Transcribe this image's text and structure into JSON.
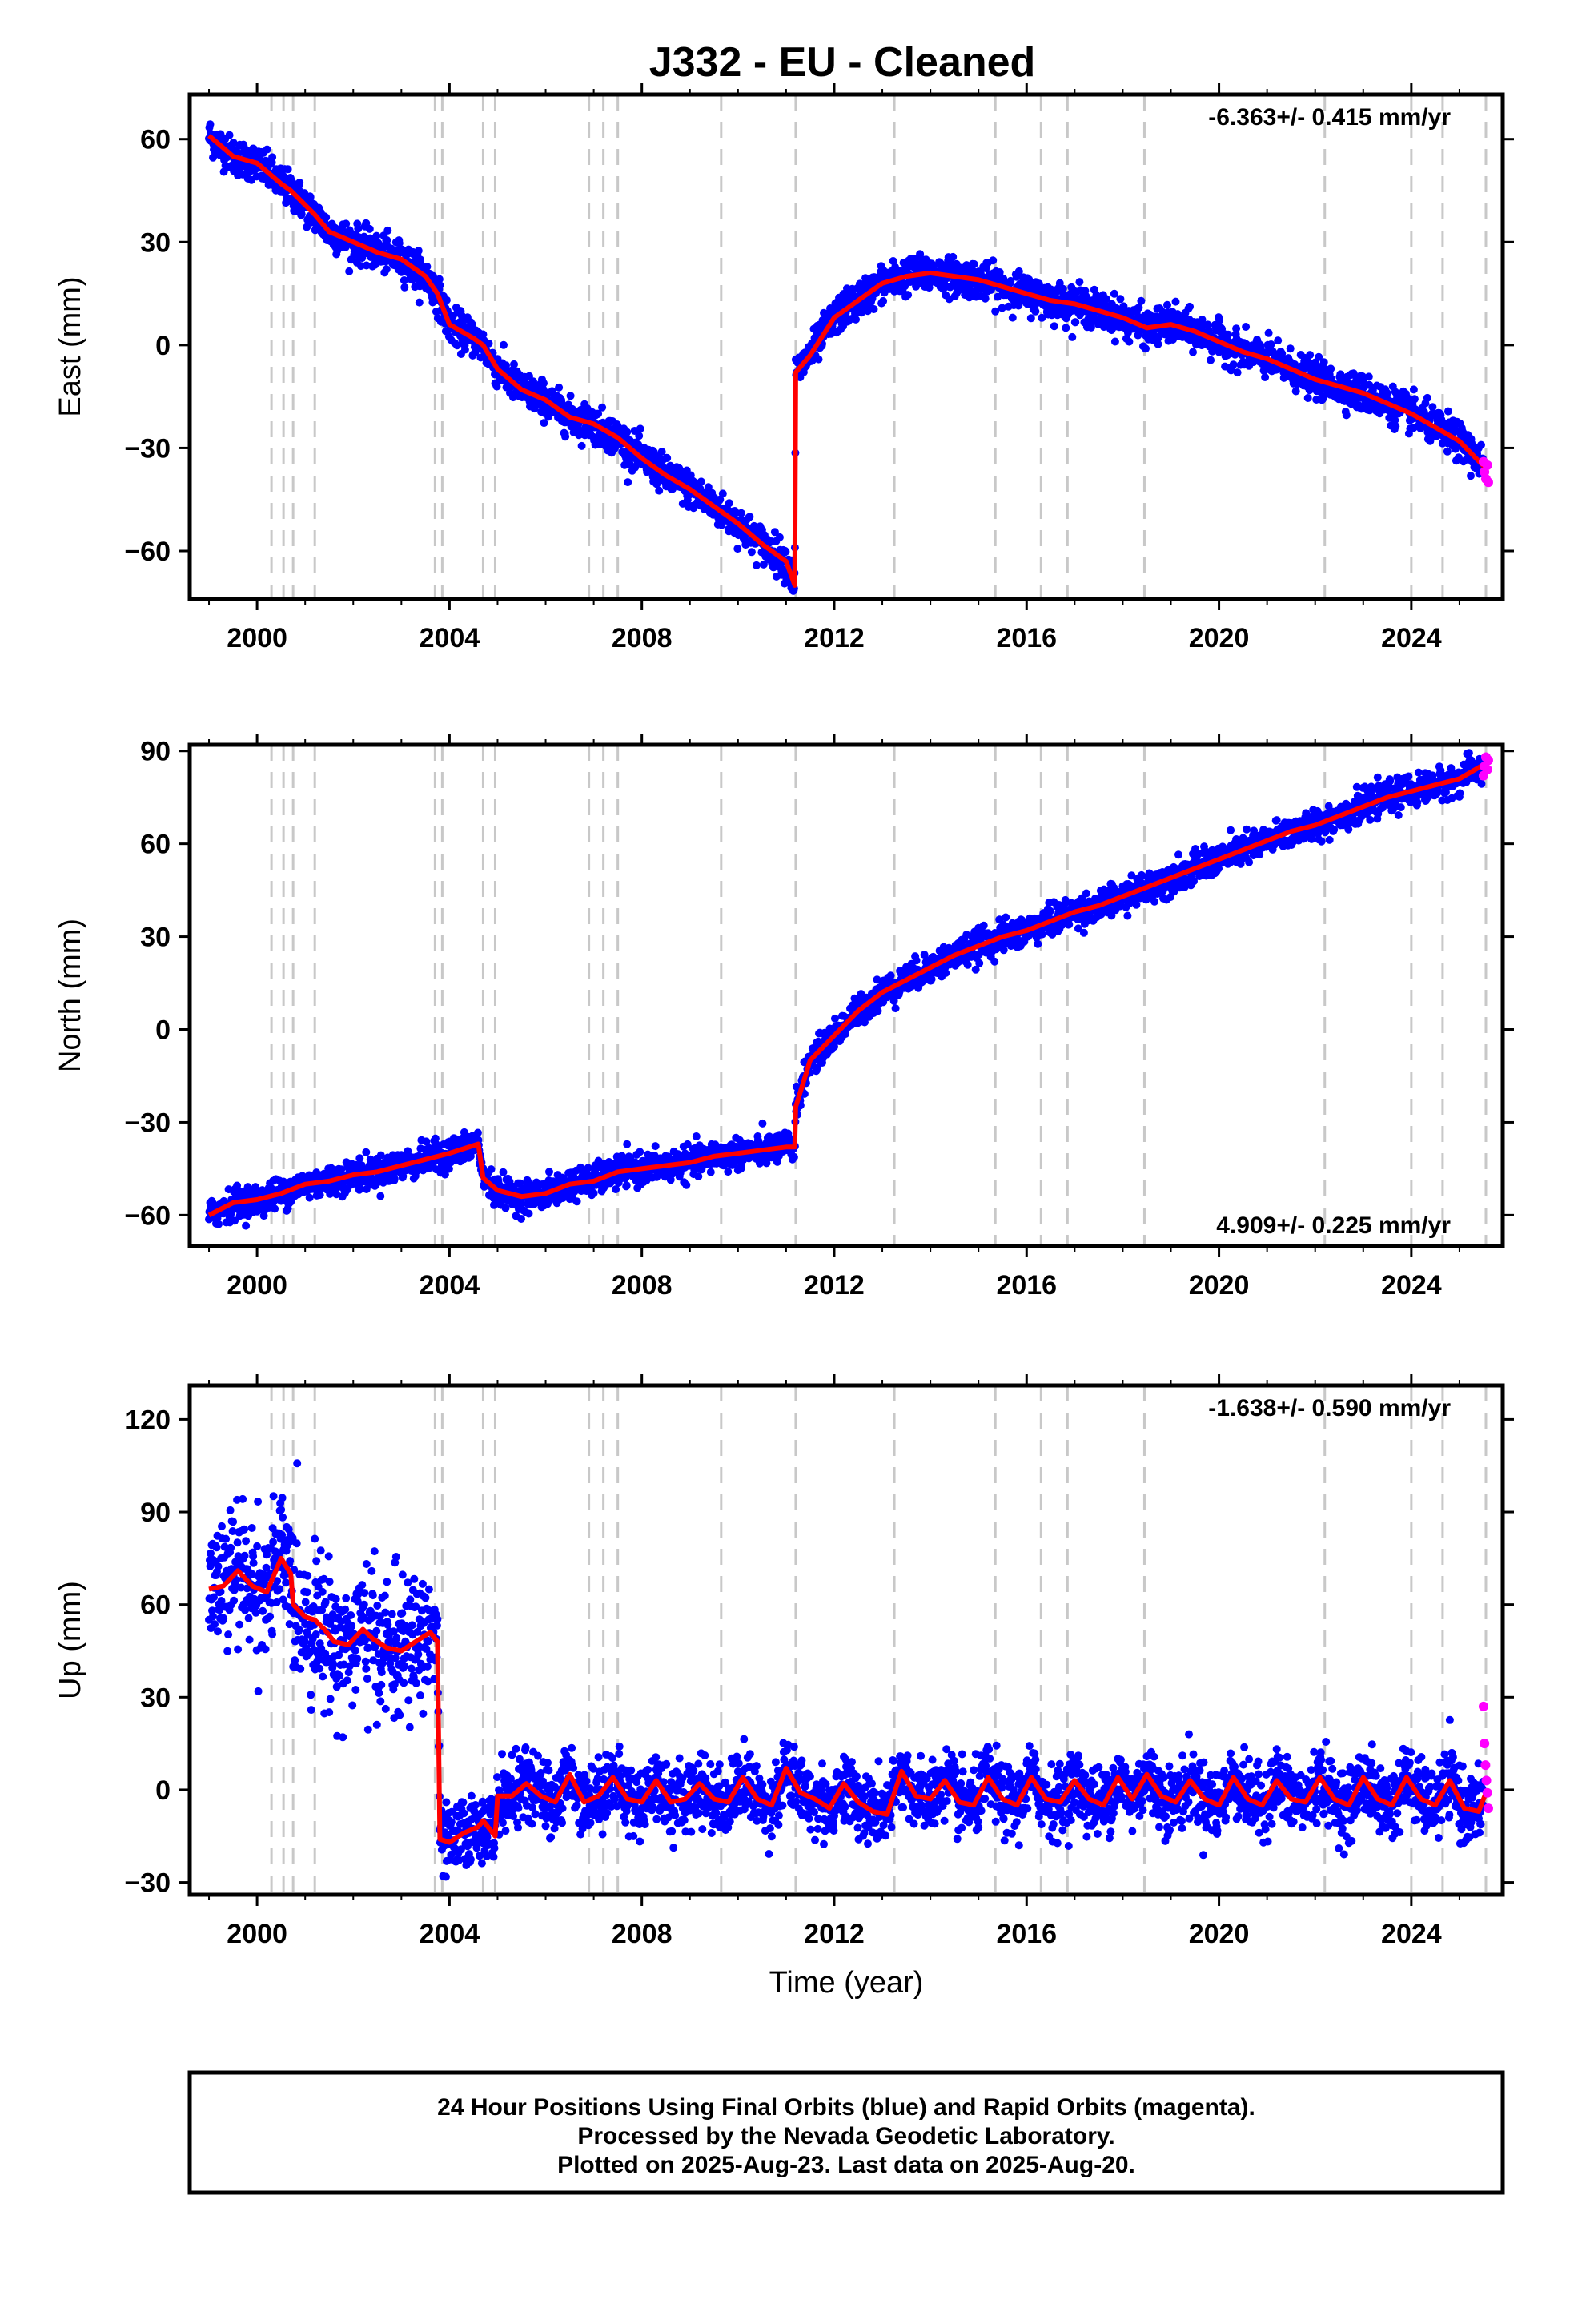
{
  "title": "J332  - EU - Cleaned",
  "xlabel": "Time (year)",
  "colors": {
    "final": "#0000ff",
    "rapid": "#ff00ff",
    "model": "#ff0000",
    "breaks": "#c8c8c8"
  },
  "footer": [
    "24 Hour Positions Using Final Orbits (blue) and Rapid Orbits (magenta).",
    "Processed by the Nevada Geodetic Laboratory.",
    "Plotted on 2025-Aug-23. Last data on 2025-Aug-20."
  ],
  "chart_data": [
    {
      "type": "scatter",
      "ylabel": "East (mm)",
      "rate": "-6.363+/- 0.415 mm/yr",
      "xlim": [
        1998.6,
        2025.9
      ],
      "ylim": [
        -74,
        73
      ],
      "xticks": [
        2000,
        2004,
        2008,
        2012,
        2016,
        2020,
        2024
      ],
      "yticks": [
        -60,
        -30,
        0,
        30,
        60
      ],
      "breaks": [
        2000.3,
        2000.55,
        2000.75,
        2001.2,
        2003.7,
        2003.85,
        2004.7,
        2004.95,
        2006.9,
        2007.2,
        2007.5,
        2009.65,
        2011.2,
        2013.25,
        2015.35,
        2016.3,
        2016.85,
        2018.45,
        2022.2,
        2024.0,
        2024.65,
        2025.55
      ],
      "series": [
        {
          "role": "model",
          "x": [
            1999.0,
            1999.5,
            2000.0,
            2000.5,
            2000.7,
            2001.2,
            2001.5,
            2002.0,
            2002.5,
            2003.0,
            2003.5,
            2003.75,
            2004.0,
            2004.5,
            2004.7,
            2005.0,
            2005.5,
            2006.0,
            2006.5,
            2007.0,
            2007.5,
            2008.0,
            2008.5,
            2009.0,
            2009.5,
            2010.0,
            2010.5,
            2011.0,
            2011.18,
            2011.2,
            2011.5,
            2012.0,
            2012.5,
            2013.0,
            2013.5,
            2014.0,
            2014.5,
            2015.0,
            2015.5,
            2016.0,
            2016.5,
            2017.0,
            2017.5,
            2018.0,
            2018.5,
            2019.0,
            2019.5,
            2020.0,
            2020.5,
            2021.0,
            2021.5,
            2022.0,
            2022.5,
            2023.0,
            2023.5,
            2024.0,
            2024.5,
            2025.0,
            2025.55
          ],
          "y": [
            61,
            55,
            53,
            47,
            45,
            38,
            33,
            30,
            27,
            25,
            20,
            15,
            6,
            2,
            0,
            -7,
            -13,
            -16,
            -21,
            -23,
            -27,
            -33,
            -38,
            -42,
            -47,
            -52,
            -58,
            -63,
            -70,
            -8,
            -3,
            8,
            13,
            18,
            20,
            21,
            20,
            19,
            17,
            15,
            13,
            12,
            10,
            8,
            5,
            6,
            4,
            1,
            -2,
            -4,
            -7,
            -10,
            -12,
            -14,
            -17,
            -20,
            -24,
            -28,
            -36
          ]
        },
        {
          "role": "final",
          "note": "daily positions scatter around model",
          "noise_mm": 2.6,
          "x_range": [
            1999.0,
            2025.5
          ]
        },
        {
          "role": "rapid",
          "x": [
            2025.5,
            2025.52,
            2025.55,
            2025.58,
            2025.6
          ],
          "y": [
            -34,
            -37,
            -39,
            -35,
            -40
          ]
        }
      ]
    },
    {
      "type": "scatter",
      "ylabel": "North (mm)",
      "rate": "4.909+/- 0.225 mm/yr",
      "xlim": [
        1998.6,
        2025.9
      ],
      "ylim": [
        -70,
        92
      ],
      "xticks": [
        2000,
        2004,
        2008,
        2012,
        2016,
        2020,
        2024
      ],
      "yticks": [
        -60,
        -30,
        0,
        30,
        60,
        90
      ],
      "breaks": [
        2000.3,
        2000.55,
        2000.75,
        2001.2,
        2003.7,
        2003.85,
        2004.7,
        2004.95,
        2006.9,
        2007.2,
        2007.5,
        2009.65,
        2011.2,
        2013.25,
        2015.35,
        2016.3,
        2016.85,
        2018.45,
        2022.2,
        2024.0,
        2024.65,
        2025.55
      ],
      "series": [
        {
          "role": "model",
          "x": [
            1999.0,
            1999.5,
            2000.0,
            2000.5,
            2001.0,
            2001.5,
            2002.0,
            2002.5,
            2003.0,
            2003.5,
            2004.0,
            2004.6,
            2004.7,
            2005.0,
            2005.5,
            2006.0,
            2006.5,
            2007.0,
            2007.5,
            2008.0,
            2008.5,
            2009.0,
            2009.5,
            2010.0,
            2010.5,
            2011.0,
            2011.18,
            2011.2,
            2011.5,
            2012.0,
            2012.5,
            2013.0,
            2013.5,
            2014.0,
            2014.5,
            2015.0,
            2015.5,
            2016.0,
            2016.5,
            2017.0,
            2017.5,
            2018.0,
            2018.5,
            2019.0,
            2019.5,
            2020.0,
            2020.5,
            2021.0,
            2021.5,
            2022.0,
            2022.5,
            2023.0,
            2023.5,
            2024.0,
            2024.5,
            2025.0,
            2025.55
          ],
          "y": [
            -60,
            -56,
            -55,
            -53,
            -50,
            -49,
            -47,
            -46,
            -44,
            -42,
            -40,
            -37,
            -48,
            -52,
            -54,
            -53,
            -50,
            -49,
            -46,
            -45,
            -44,
            -43,
            -41,
            -40,
            -39,
            -38,
            -38,
            -25,
            -10,
            -2,
            6,
            12,
            16,
            20,
            24,
            27,
            30,
            32,
            35,
            38,
            40,
            43,
            46,
            49,
            52,
            55,
            58,
            61,
            64,
            66,
            69,
            72,
            75,
            77,
            79,
            81,
            86
          ]
        },
        {
          "role": "final",
          "note": "daily positions scatter around model",
          "noise_mm": 2.4,
          "x_range": [
            1999.0,
            2025.5
          ]
        },
        {
          "role": "rapid",
          "x": [
            2025.5,
            2025.52,
            2025.55,
            2025.58,
            2025.6
          ],
          "y": [
            82,
            85,
            88,
            84,
            87
          ]
        }
      ]
    },
    {
      "type": "scatter",
      "ylabel": "Up (mm)",
      "rate": "-1.638+/- 0.590 mm/yr",
      "xlim": [
        1998.6,
        2025.9
      ],
      "ylim": [
        -34,
        131
      ],
      "xticks": [
        2000,
        2004,
        2008,
        2012,
        2016,
        2020,
        2024
      ],
      "yticks": [
        -30,
        0,
        30,
        60,
        90,
        120
      ],
      "breaks": [
        2000.3,
        2000.55,
        2000.75,
        2001.2,
        2003.7,
        2003.85,
        2004.7,
        2004.95,
        2006.9,
        2007.2,
        2007.5,
        2009.65,
        2011.2,
        2013.25,
        2015.35,
        2016.3,
        2016.85,
        2018.45,
        2022.2,
        2024.0,
        2024.65,
        2025.55
      ],
      "series": [
        {
          "role": "model",
          "x": [
            1999.0,
            1999.3,
            1999.6,
            1999.9,
            2000.2,
            2000.5,
            2000.7,
            2000.75,
            2001.0,
            2001.2,
            2001.4,
            2001.6,
            2001.9,
            2002.2,
            2002.4,
            2002.7,
            2003.0,
            2003.3,
            2003.6,
            2003.75,
            2003.8,
            2004.0,
            2004.3,
            2004.6,
            2004.7,
            2004.95,
            2005.0,
            2005.3,
            2005.6,
            2005.9,
            2006.2,
            2006.5,
            2006.8,
            2007.1,
            2007.4,
            2007.7,
            2008.0,
            2008.3,
            2008.6,
            2008.9,
            2009.2,
            2009.5,
            2009.8,
            2010.1,
            2010.4,
            2010.7,
            2011.0,
            2011.3,
            2011.6,
            2011.9,
            2012.2,
            2012.5,
            2012.8,
            2013.1,
            2013.4,
            2013.7,
            2014.0,
            2014.3,
            2014.6,
            2014.9,
            2015.2,
            2015.5,
            2015.8,
            2016.1,
            2016.4,
            2016.7,
            2017.0,
            2017.3,
            2017.6,
            2017.9,
            2018.2,
            2018.5,
            2018.8,
            2019.1,
            2019.4,
            2019.7,
            2020.0,
            2020.3,
            2020.6,
            2020.9,
            2021.2,
            2021.5,
            2021.8,
            2022.1,
            2022.4,
            2022.7,
            2023.0,
            2023.3,
            2023.6,
            2023.9,
            2024.2,
            2024.5,
            2024.8,
            2025.1,
            2025.4,
            2025.55
          ],
          "y": [
            65,
            66,
            71,
            66,
            64,
            75,
            70,
            60,
            56,
            55,
            52,
            48,
            47,
            52,
            49,
            46,
            45,
            48,
            51,
            48,
            -16,
            -17,
            -14,
            -12,
            -10,
            -15,
            -2,
            -2,
            2,
            -2,
            -4,
            5,
            -4,
            -2,
            4,
            -3,
            -4,
            3,
            -4,
            -3,
            2,
            -3,
            -4,
            4,
            -3,
            -5,
            7,
            -1,
            -3,
            -6,
            2,
            -4,
            -7,
            -8,
            6,
            -2,
            -3,
            3,
            -4,
            -5,
            4,
            -3,
            -5,
            4,
            -3,
            -4,
            3,
            -3,
            -5,
            4,
            -3,
            5,
            -2,
            -4,
            3,
            -3,
            -5,
            4,
            -3,
            -5,
            3,
            -3,
            -4,
            4,
            -3,
            -5,
            4,
            -3,
            -5,
            4,
            -3,
            -5,
            3,
            -6,
            -7,
            -1
          ]
        },
        {
          "role": "final",
          "note": "daily positions scatter around model; larger scatter before 2003.75",
          "noise_mm": 5.5,
          "x_range": [
            1999.0,
            2025.5
          ]
        },
        {
          "role": "rapid",
          "x": [
            2025.5,
            2025.52,
            2025.54,
            2025.56,
            2025.58,
            2025.6
          ],
          "y": [
            27,
            15,
            8,
            3,
            -1,
            -6
          ]
        }
      ]
    }
  ]
}
